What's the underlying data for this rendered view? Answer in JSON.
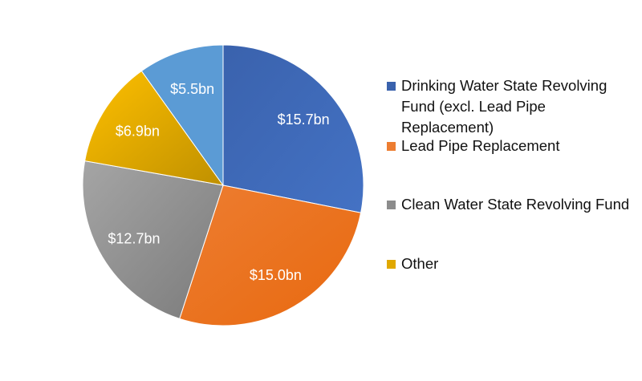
{
  "chart_data": {
    "type": "pie",
    "start_angle": "top",
    "direction": "clockwise",
    "slices": [
      {
        "name": "Drinking Water State Revolving Fund (excl. Lead Pipe Replacement)",
        "value": 15.7,
        "label": "$15.7bn",
        "color": "#3a62ad",
        "color2": "#4472c4"
      },
      {
        "name": "Lead Pipe Replacement",
        "value": 15.0,
        "label": "$15.0bn",
        "color": "#ed7d31",
        "color2": "#e8690f"
      },
      {
        "name": "Clean Water State Revolving Fund",
        "value": 12.7,
        "label": "$12.7bn",
        "color": "#a5a5a5",
        "color2": "#7b7b7b"
      },
      {
        "name": "Other",
        "value": 6.9,
        "label": "$6.9bn",
        "color": "#ffc000",
        "color2": "#bf9000"
      },
      {
        "name": "",
        "value": 5.5,
        "label": "$5.5bn",
        "color": "#5b9bd5",
        "color2": "#5b9bd5"
      }
    ],
    "legend": {
      "placement": "right",
      "entries": [
        "Drinking Water State Revolving Fund (excl. Lead Pipe Replacement)",
        "Lead Pipe Replacement",
        "Clean Water State Revolving Fund",
        "Other"
      ]
    }
  }
}
